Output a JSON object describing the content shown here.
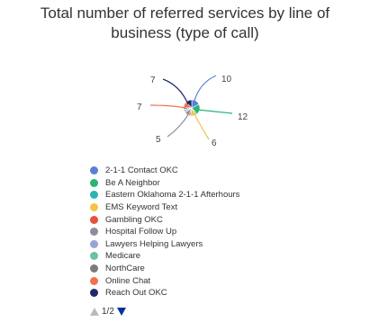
{
  "chart_data": {
    "type": "pie",
    "title_lines": [
      "Total number of referred services by line of",
      "business (type of call)"
    ],
    "slices": [
      {
        "label": "2-1-1 Contact OKC",
        "value": 10,
        "color": "#5b7fd6"
      },
      {
        "label": "Be A Neighbor",
        "value": 12,
        "color": "#27b573"
      },
      {
        "label": "Eastern Oklahoma 2-1-1 Afterhours",
        "value": 2,
        "color": "#2bb5b0"
      },
      {
        "label": "EMS Keyword Text",
        "value": 6,
        "color": "#f2c34a"
      },
      {
        "label": "Gambling OKC",
        "value": 2,
        "color": "#e8503f"
      },
      {
        "label": "Hospital Follow Up",
        "value": 5,
        "color": "#8a8f9a"
      },
      {
        "label": "Lawyers Helping Lawyers",
        "value": 2,
        "color": "#9aa3d4"
      },
      {
        "label": "Medicare",
        "value": 2,
        "color": "#6cc0a8"
      },
      {
        "label": "NorthCare",
        "value": 2,
        "color": "#7b7b7b"
      },
      {
        "label": "Online Chat",
        "value": 7,
        "color": "#f2704e"
      },
      {
        "label": "Reach Out OKC",
        "value": 7,
        "color": "#1f2a6b"
      }
    ],
    "data_labels": [
      "7",
      "10",
      "7",
      "12",
      "5",
      "6"
    ],
    "legend_position": "bottom",
    "pagination": "1/2"
  }
}
